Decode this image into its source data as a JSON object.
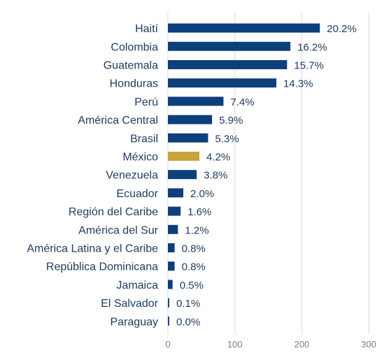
{
  "chart_data": {
    "type": "bar",
    "orientation": "horizontal",
    "categories": [
      "Haití",
      "Colombia",
      "Guatemala",
      "Honduras",
      "Perú",
      "América Central",
      "Brasil",
      "México",
      "Venezuela",
      "Ecuador",
      "Región del Caribe",
      "América del Sur",
      "América Latina y el Caribe",
      "República Dominicana",
      "Jamaica",
      "El Salvador",
      "Paraguay"
    ],
    "values": [
      227,
      183,
      178,
      162,
      83,
      66,
      60,
      47,
      43,
      23,
      19,
      15,
      10,
      10,
      7,
      2,
      2
    ],
    "data_labels": [
      "20.2%",
      "16.2%",
      "15.7%",
      "14.3%",
      "7.4%",
      "5.9%",
      "5.3%",
      "4.2%",
      "3.8%",
      "2.0%",
      "1.6%",
      "1.2%",
      "0.8%",
      "0.8%",
      "0.5%",
      "0.1%",
      "0.0%"
    ],
    "highlight_category": "México",
    "xlim": [
      0,
      300
    ],
    "xticks": [
      0,
      100,
      200,
      300
    ],
    "x_tick_labels": [
      "0",
      "100",
      "200",
      "300"
    ],
    "grid": true,
    "title": "",
    "xlabel": "",
    "ylabel": "",
    "colors": {
      "bar": "#0d3f7c",
      "highlight": "#c9a43c",
      "grid": "#d9d9d9",
      "category_text": "#1f3a5f",
      "label_text": "#1f3a5f",
      "tick_text": "#7f7f7f"
    }
  }
}
